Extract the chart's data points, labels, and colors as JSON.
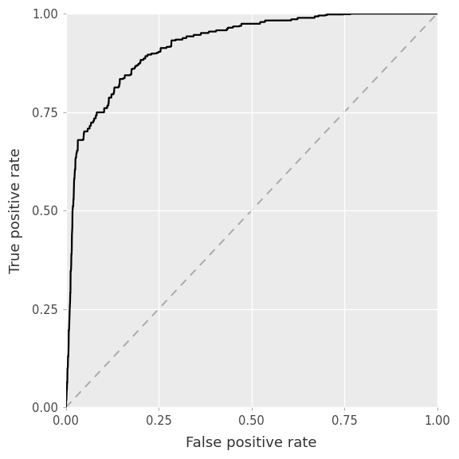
{
  "title": "",
  "xlabel": "False positive rate",
  "ylabel": "True positive rate",
  "plot_bg_color": "#EBEBEB",
  "fig_bg_color": "#FFFFFF",
  "grid_color": "#FFFFFF",
  "roc_color": "#000000",
  "diagonal_color": "#AAAAAA",
  "xlim": [
    0.0,
    1.0
  ],
  "ylim": [
    0.0,
    1.0
  ],
  "xticks": [
    0.0,
    0.25,
    0.5,
    0.75,
    1.0
  ],
  "yticks": [
    0.0,
    0.25,
    0.5,
    0.75,
    1.0
  ],
  "xlabel_fontsize": 13,
  "ylabel_fontsize": 13,
  "tick_fontsize": 10.5,
  "line_width": 1.6,
  "key_fpr": [
    0.0,
    0.005,
    0.01,
    0.015,
    0.018,
    0.02,
    0.022,
    0.025,
    0.03,
    0.04,
    0.05,
    0.06,
    0.08,
    0.1,
    0.13,
    0.15,
    0.18,
    0.2,
    0.22,
    0.25,
    0.28,
    0.3,
    0.35,
    0.4,
    0.45,
    0.5,
    0.55,
    0.6,
    0.65,
    0.7,
    0.75,
    0.8,
    0.85,
    0.9,
    0.95,
    1.0
  ],
  "key_tpr": [
    0.0,
    0.1,
    0.25,
    0.4,
    0.5,
    0.53,
    0.57,
    0.62,
    0.64,
    0.66,
    0.68,
    0.695,
    0.72,
    0.74,
    0.79,
    0.82,
    0.85,
    0.87,
    0.88,
    0.895,
    0.91,
    0.92,
    0.935,
    0.945,
    0.955,
    0.96,
    0.967,
    0.973,
    0.977,
    0.982,
    0.986,
    0.99,
    0.993,
    0.996,
    0.998,
    1.0
  ]
}
